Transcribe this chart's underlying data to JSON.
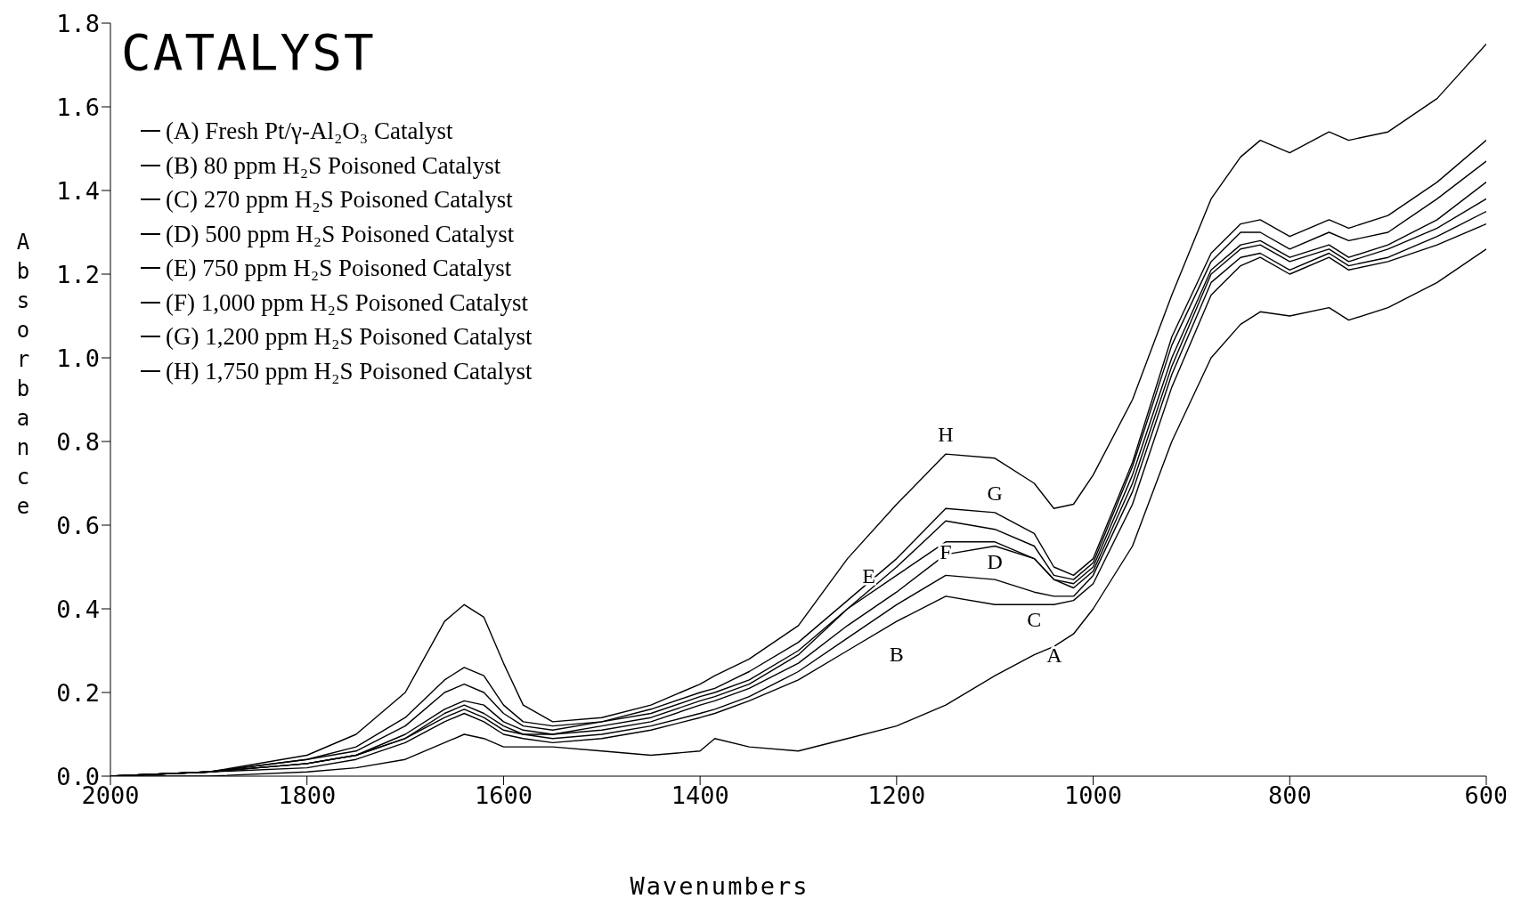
{
  "chart_data": {
    "type": "line",
    "title": "CATALYST",
    "xlabel": "Wavenumbers",
    "ylabel": "Absorbance",
    "x": [
      2000,
      1900,
      1800,
      1750,
      1700,
      1660,
      1640,
      1620,
      1600,
      1580,
      1550,
      1500,
      1450,
      1400,
      1385,
      1350,
      1300,
      1250,
      1200,
      1150,
      1100,
      1060,
      1040,
      1020,
      1000,
      960,
      920,
      880,
      850,
      830,
      800,
      760,
      740,
      700,
      650,
      600
    ],
    "series": [
      {
        "name": "(A) Fresh Pt/γ-Al₂O₃ Catalyst",
        "color": "#000000",
        "values": [
          0,
          0,
          0.01,
          0.02,
          0.04,
          0.08,
          0.1,
          0.09,
          0.07,
          0.07,
          0.07,
          0.06,
          0.05,
          0.06,
          0.09,
          0.07,
          0.06,
          0.09,
          0.12,
          0.17,
          0.24,
          0.29,
          0.31,
          0.34,
          0.4,
          0.55,
          0.8,
          1.0,
          1.08,
          1.11,
          1.1,
          1.12,
          1.09,
          1.12,
          1.18,
          1.26
        ]
      },
      {
        "name": "(B) 80 ppm H₂S Poisoned Catalyst",
        "color": "#000000",
        "values": [
          0,
          0.01,
          0.02,
          0.04,
          0.08,
          0.13,
          0.15,
          0.13,
          0.1,
          0.09,
          0.08,
          0.09,
          0.11,
          0.14,
          0.15,
          0.18,
          0.23,
          0.3,
          0.37,
          0.43,
          0.41,
          0.41,
          0.41,
          0.42,
          0.46,
          0.65,
          0.93,
          1.15,
          1.22,
          1.24,
          1.2,
          1.24,
          1.21,
          1.23,
          1.27,
          1.32
        ]
      },
      {
        "name": "(C) 270 ppm H₂S Poisoned Catalyst",
        "color": "#000000",
        "values": [
          0,
          0.01,
          0.03,
          0.05,
          0.09,
          0.14,
          0.16,
          0.14,
          0.11,
          0.1,
          0.09,
          0.1,
          0.12,
          0.15,
          0.16,
          0.19,
          0.25,
          0.33,
          0.41,
          0.48,
          0.47,
          0.44,
          0.43,
          0.43,
          0.48,
          0.68,
          0.96,
          1.18,
          1.24,
          1.25,
          1.21,
          1.25,
          1.22,
          1.24,
          1.29,
          1.35
        ]
      },
      {
        "name": "(D) 500 ppm H₂S Poisoned Catalyst",
        "color": "#000000",
        "values": [
          0,
          0.01,
          0.03,
          0.05,
          0.09,
          0.15,
          0.17,
          0.15,
          0.12,
          0.1,
          0.1,
          0.11,
          0.13,
          0.17,
          0.18,
          0.21,
          0.27,
          0.36,
          0.44,
          0.53,
          0.55,
          0.52,
          0.47,
          0.45,
          0.49,
          0.7,
          0.98,
          1.2,
          1.26,
          1.27,
          1.23,
          1.26,
          1.23,
          1.26,
          1.31,
          1.38
        ]
      },
      {
        "name": "(E) 750 ppm H₂S Poisoned Catalyst",
        "color": "#000000",
        "values": [
          0,
          0.01,
          0.03,
          0.05,
          0.1,
          0.16,
          0.18,
          0.17,
          0.13,
          0.11,
          0.1,
          0.12,
          0.14,
          0.18,
          0.19,
          0.22,
          0.29,
          0.4,
          0.48,
          0.56,
          0.56,
          0.52,
          0.47,
          0.46,
          0.5,
          0.72,
          1.0,
          1.21,
          1.27,
          1.28,
          1.24,
          1.27,
          1.24,
          1.27,
          1.33,
          1.42
        ]
      },
      {
        "name": "(F) 1,000 ppm H₂S Poisoned Catalyst",
        "color": "#000000",
        "values": [
          0,
          0.01,
          0.04,
          0.06,
          0.12,
          0.2,
          0.22,
          0.2,
          0.15,
          0.12,
          0.11,
          0.13,
          0.15,
          0.19,
          0.2,
          0.23,
          0.3,
          0.4,
          0.5,
          0.61,
          0.59,
          0.55,
          0.48,
          0.47,
          0.51,
          0.74,
          1.03,
          1.23,
          1.3,
          1.3,
          1.26,
          1.3,
          1.28,
          1.3,
          1.38,
          1.47
        ]
      },
      {
        "name": "(G) 1,200 ppm H₂S Poisoned Catalyst",
        "color": "#000000",
        "values": [
          0,
          0.01,
          0.04,
          0.07,
          0.14,
          0.23,
          0.26,
          0.24,
          0.17,
          0.13,
          0.12,
          0.13,
          0.16,
          0.2,
          0.21,
          0.25,
          0.32,
          0.42,
          0.52,
          0.64,
          0.63,
          0.58,
          0.5,
          0.48,
          0.52,
          0.75,
          1.05,
          1.25,
          1.32,
          1.33,
          1.29,
          1.33,
          1.31,
          1.34,
          1.42,
          1.52
        ]
      },
      {
        "name": "(H) 1,750 ppm H₂S Poisoned Catalyst",
        "color": "#000000",
        "values": [
          0,
          0.01,
          0.05,
          0.1,
          0.2,
          0.37,
          0.41,
          0.38,
          0.27,
          0.17,
          0.13,
          0.14,
          0.17,
          0.22,
          0.24,
          0.28,
          0.36,
          0.52,
          0.65,
          0.77,
          0.76,
          0.7,
          0.64,
          0.65,
          0.72,
          0.9,
          1.15,
          1.38,
          1.48,
          1.52,
          1.49,
          1.54,
          1.52,
          1.54,
          1.62,
          1.75
        ]
      }
    ],
    "annotations": [
      {
        "text": "H",
        "x": 1150,
        "y": 0.77
      },
      {
        "text": "G",
        "x": 1100,
        "y": 0.63
      },
      {
        "text": "F",
        "x": 1150,
        "y": 0.61
      },
      {
        "text": "D",
        "x": 1100,
        "y": 0.55
      },
      {
        "text": "E",
        "x": 1200,
        "y": 0.48
      },
      {
        "text": "C",
        "x": 1060,
        "y": 0.44
      },
      {
        "text": "B",
        "x": 1200,
        "y": 0.37
      },
      {
        "text": "A",
        "x": 1060,
        "y": 0.29
      }
    ],
    "xlim": [
      2000,
      600
    ],
    "xticks": [
      2000,
      1800,
      1600,
      1400,
      1200,
      1000,
      800,
      600
    ],
    "ylim": [
      0,
      1.8
    ],
    "yticks": [
      {
        "value": 0,
        "label": "0.0"
      },
      {
        "value": 0.2,
        "label": "0.2"
      },
      {
        "value": 0.4,
        "label": "0.4"
      },
      {
        "value": 0.6,
        "label": "0.6"
      },
      {
        "value": 0.8,
        "label": "0.8"
      },
      {
        "value": 1,
        "label": "1.0"
      },
      {
        "value": 1.2,
        "label": "1.2"
      },
      {
        "value": 1.4,
        "label": "1.4"
      },
      {
        "value": 1.6,
        "label": "1.6"
      },
      {
        "value": 1.8,
        "label": "1.8"
      }
    ],
    "legend": "top left",
    "grid": false,
    "marker": "none",
    "line_style": "solid"
  }
}
